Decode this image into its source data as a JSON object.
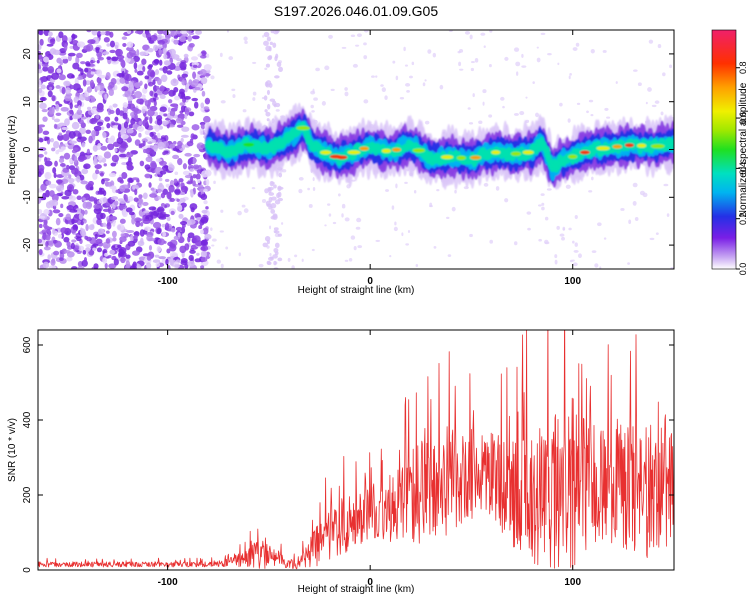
{
  "title": "S197.2026.046.01.09.G05",
  "chart_data": [
    {
      "type": "heatmap",
      "name": "spectrogram",
      "xlabel": "Height of straight line (km)",
      "ylabel": "Frequency (Hz)",
      "xlim": [
        -164,
        150
      ],
      "ylim": [
        -25,
        25
      ],
      "xticks": [
        -100,
        0,
        100
      ],
      "xtick_labels": [
        "-100",
        "0",
        "100"
      ],
      "yticks": [
        -20,
        -10,
        0,
        10,
        20
      ],
      "ytick_labels": [
        "-20",
        "-10",
        "0",
        "10",
        "20"
      ],
      "ridge": {
        "x": [
          -80,
          -70,
          -60,
          -50,
          -40,
          -33,
          -28,
          -20,
          -15,
          -10,
          -5,
          0,
          10,
          20,
          30,
          40,
          50,
          60,
          70,
          80,
          85,
          90,
          95,
          100,
          110,
          120,
          130,
          140,
          150
        ],
        "y": [
          1,
          -0.5,
          1,
          0,
          2.5,
          4.5,
          0.5,
          -1,
          -1.8,
          -1,
          0,
          0.5,
          -0.5,
          1,
          -2,
          -1.5,
          -2,
          -0.5,
          -1,
          -0.5,
          1.5,
          -4,
          -2,
          -1.5,
          0,
          0.5,
          1,
          0.5,
          1.5
        ]
      },
      "colorbar": {
        "label": "Normalized spectral amplitude",
        "range": [
          0,
          0.95
        ],
        "ticks": [
          0.0,
          0.2,
          0.4,
          0.6,
          0.8
        ],
        "tick_labels": [
          "0.0",
          "0.2",
          "0.4",
          "0.6",
          "0.8"
        ]
      }
    },
    {
      "type": "line",
      "name": "snr",
      "xlabel": "Height of straight line (km)",
      "ylabel": "SNR (10 * v/v)",
      "xlim": [
        -164,
        150
      ],
      "ylim": [
        0,
        640
      ],
      "xticks": [
        -100,
        0,
        100
      ],
      "xtick_labels": [
        "-100",
        "0",
        "100"
      ],
      "yticks": [
        0,
        200,
        400,
        600
      ],
      "ytick_labels": [
        "0",
        "200",
        "400",
        "600"
      ],
      "series": [
        {
          "name": "SNR",
          "color": "#e83030",
          "envelope": {
            "x": [
              -164,
              -80,
              -70,
              -60,
              -55,
              -50,
              -45,
              -40,
              -35,
              -30,
              -25,
              -20,
              -15,
              -10,
              -5,
              0,
              5,
              10,
              15,
              20,
              25,
              30,
              35,
              40,
              45,
              50,
              55,
              60,
              65,
              70,
              75,
              80,
              85,
              90,
              95,
              100,
              105,
              110,
              115,
              120,
              125,
              130,
              135,
              140,
              145,
              150
            ],
            "base": [
              15,
              15,
              20,
              35,
              45,
              40,
              30,
              15,
              20,
              45,
              75,
              100,
              115,
              120,
              140,
              150,
              160,
              165,
              180,
              200,
              210,
              220,
              230,
              240,
              250,
              255,
              250,
              255,
              230,
              215,
              210,
              200,
              200,
              190,
              200,
              220,
              230,
              220,
              230,
              230,
              220,
              215,
              220,
              220,
              240,
              240
            ],
            "amp": [
              10,
              10,
              15,
              40,
              60,
              65,
              40,
              15,
              25,
              60,
              90,
              110,
              110,
              110,
              110,
              110,
              110,
              140,
              160,
              190,
              200,
              200,
              210,
              210,
              180,
              180,
              160,
              160,
              200,
              220,
              260,
              270,
              290,
              330,
              380,
              380,
              250,
              250,
              250,
              260,
              270,
              270,
              260,
              280,
              260,
              260
            ]
          }
        }
      ]
    }
  ]
}
